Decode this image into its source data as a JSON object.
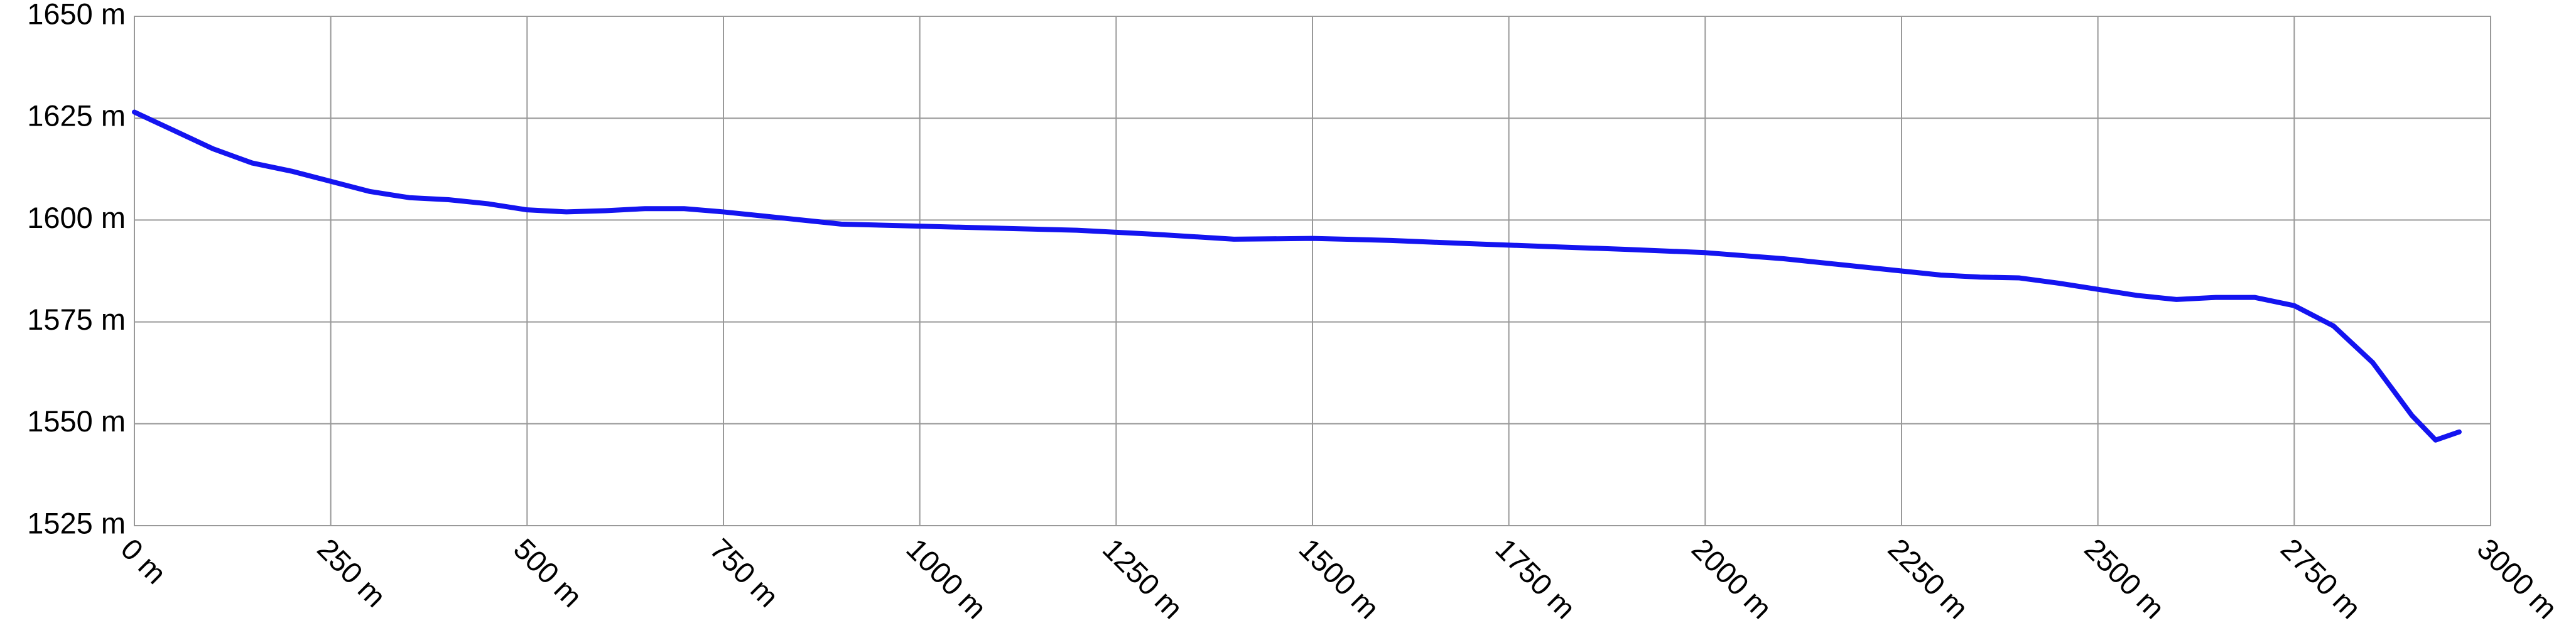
{
  "chart_data": {
    "type": "line",
    "x": [
      0,
      50,
      100,
      150,
      200,
      250,
      300,
      350,
      400,
      450,
      500,
      550,
      600,
      650,
      700,
      750,
      800,
      850,
      900,
      1000,
      1100,
      1200,
      1250,
      1300,
      1400,
      1500,
      1600,
      1700,
      1800,
      1900,
      2000,
      2100,
      2200,
      2300,
      2350,
      2400,
      2450,
      2500,
      2550,
      2600,
      2650,
      2700,
      2750,
      2800,
      2850,
      2900,
      2930,
      2960
    ],
    "values": [
      1626.5,
      1622,
      1617.5,
      1614,
      1612,
      1609.5,
      1607,
      1605.5,
      1605,
      1604,
      1602.5,
      1602,
      1602.3,
      1602.8,
      1602.8,
      1602,
      1601,
      1600,
      1599,
      1598.5,
      1598,
      1597.5,
      1597,
      1596.5,
      1595.3,
      1595.5,
      1595,
      1594.2,
      1593.5,
      1592.8,
      1592,
      1590.5,
      1588.5,
      1586.5,
      1586,
      1585.8,
      1584.5,
      1583,
      1581.5,
      1580.5,
      1581,
      1581,
      1579,
      1574,
      1565,
      1552,
      1546,
      1548
    ],
    "color": "#1414f0",
    "xlim": [
      0,
      3000
    ],
    "xticks": [
      {
        "value": 0,
        "label": "0 m"
      },
      {
        "value": 250,
        "label": "250 m"
      },
      {
        "value": 500,
        "label": "500 m"
      },
      {
        "value": 750,
        "label": "750 m"
      },
      {
        "value": 1000,
        "label": "1000 m"
      },
      {
        "value": 1250,
        "label": "1250 m"
      },
      {
        "value": 1500,
        "label": "1500 m"
      },
      {
        "value": 1750,
        "label": "1750 m"
      },
      {
        "value": 2000,
        "label": "2000 m"
      },
      {
        "value": 2250,
        "label": "2250 m"
      },
      {
        "value": 2500,
        "label": "2500 m"
      },
      {
        "value": 2750,
        "label": "2750 m"
      },
      {
        "value": 3000,
        "label": "3000 m"
      }
    ],
    "ylim": [
      1525,
      1650
    ],
    "yticks": [
      {
        "value": 1525,
        "label": "1525 m"
      },
      {
        "value": 1550,
        "label": "1550 m"
      },
      {
        "value": 1575,
        "label": "1575 m"
      },
      {
        "value": 1600,
        "label": "1600 m"
      },
      {
        "value": 1625,
        "label": "1625 m"
      },
      {
        "value": 1650,
        "label": "1650 m"
      }
    ],
    "grid": true
  }
}
